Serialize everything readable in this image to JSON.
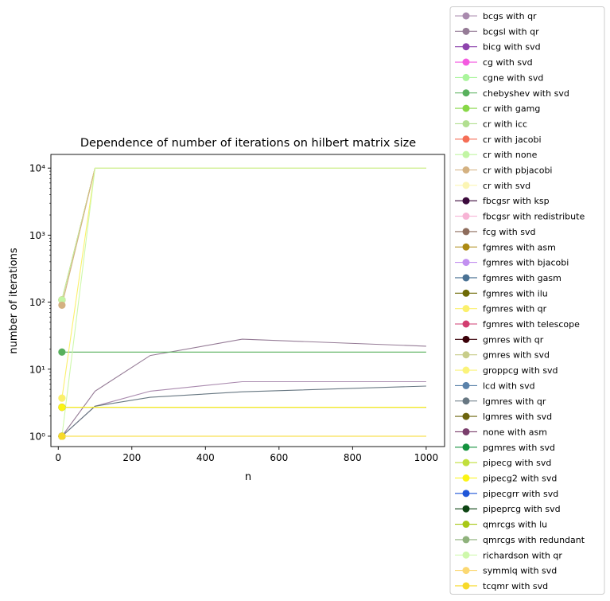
{
  "chart_data": {
    "type": "line",
    "title": "Dependence of number of iterations on hilbert matrix size",
    "xlabel": "n",
    "ylabel": "number of iterations",
    "xscale": "linear",
    "yscale": "log",
    "xlim": [
      -20,
      1050
    ],
    "ylim": [
      0.7,
      16000
    ],
    "xticks": [
      0,
      200,
      400,
      600,
      800,
      1000
    ],
    "xtick_labels": [
      "0",
      "200",
      "400",
      "600",
      "800",
      "1000"
    ],
    "yticks": [
      1,
      10,
      100,
      1000,
      10000
    ],
    "ytick_labels": [
      "10⁰",
      "10¹",
      "10²",
      "10³",
      "10⁴"
    ],
    "grid": false,
    "legend_position": "outside right",
    "x": [
      10,
      100,
      250,
      500,
      1000
    ],
    "series": [
      {
        "name": "bcgs with qr",
        "color": "#a98aae",
        "values": [
          1,
          2.8,
          4.7,
          6.5,
          6.5
        ]
      },
      {
        "name": "bcgsl with qr",
        "color": "#957b96",
        "values": [
          1,
          4.7,
          16,
          28,
          22
        ]
      },
      {
        "name": "bicg with svd",
        "color": "#8e44ad",
        "values": [
          1,
          1,
          1,
          1,
          1
        ]
      },
      {
        "name": "cg with svd",
        "color": "#f45ae0",
        "values": [
          1,
          1,
          1,
          1,
          1
        ]
      },
      {
        "name": "cgne with svd",
        "color": "#aaf59c",
        "values": [
          1,
          1,
          1,
          1,
          1
        ]
      },
      {
        "name": "chebyshev with svd",
        "color": "#58b05c",
        "values": [
          18,
          18,
          18,
          18,
          18
        ]
      },
      {
        "name": "cr with gamg",
        "color": "#88d847",
        "values": [
          108,
          10000,
          10000,
          10000,
          10000
        ]
      },
      {
        "name": "cr with icc",
        "color": "#b2df90",
        "values": [
          108,
          10000,
          10000,
          10000,
          10000
        ]
      },
      {
        "name": "cr with jacobi",
        "color": "#f56e56",
        "values": [
          108,
          10000,
          10000,
          10000,
          10000
        ]
      },
      {
        "name": "cr with none",
        "color": "#c2f5a4",
        "values": [
          108,
          10000,
          10000,
          10000,
          10000
        ]
      },
      {
        "name": "cr with pbjacobi",
        "color": "#d4b181",
        "values": [
          90,
          10000,
          10000,
          10000,
          10000
        ]
      },
      {
        "name": "cr with svd",
        "color": "#fbf5b4",
        "values": [
          1,
          1,
          1,
          1,
          1
        ]
      },
      {
        "name": "fbcgsr with ksp",
        "color": "#3b0a3c",
        "values": [
          1,
          1,
          1,
          1,
          1
        ]
      },
      {
        "name": "fbcgsr with redistribute",
        "color": "#f7b4d5",
        "values": [
          1,
          1,
          1,
          1,
          1
        ]
      },
      {
        "name": "fcg with svd",
        "color": "#8e6c5c",
        "values": [
          1,
          1,
          1,
          1,
          1
        ]
      },
      {
        "name": "fgmres with asm",
        "color": "#ad8a12",
        "values": [
          1,
          1,
          1,
          1,
          1
        ]
      },
      {
        "name": "fgmres with bjacobi",
        "color": "#c290f0",
        "values": [
          1,
          1,
          1,
          1,
          1
        ]
      },
      {
        "name": "fgmres with gasm",
        "color": "#4a7294",
        "values": [
          1,
          1,
          1,
          1,
          1
        ]
      },
      {
        "name": "fgmres with ilu",
        "color": "#6e6a05",
        "values": [
          1,
          1,
          1,
          1,
          1
        ]
      },
      {
        "name": "fgmres with qr",
        "color": "#fbf06c",
        "values": [
          3.7,
          10000,
          10000,
          10000,
          10000
        ]
      },
      {
        "name": "fgmres with telescope",
        "color": "#d23e70",
        "values": [
          1,
          1,
          1,
          1,
          1
        ]
      },
      {
        "name": "gmres with qr",
        "color": "#3a0008",
        "values": [
          2.7,
          2.7,
          2.7,
          2.7,
          2.7
        ]
      },
      {
        "name": "gmres with svd",
        "color": "#c8cd8a",
        "values": [
          1,
          1,
          1,
          1,
          1
        ]
      },
      {
        "name": "groppcg with svd",
        "color": "#fbf37a",
        "values": [
          1,
          1,
          1,
          1,
          1
        ]
      },
      {
        "name": "lcd with svd",
        "color": "#5a82aa",
        "values": [
          1,
          1,
          1,
          1,
          1
        ]
      },
      {
        "name": "lgmres with qr",
        "color": "#677782",
        "values": [
          1,
          2.8,
          3.8,
          4.6,
          5.6
        ]
      },
      {
        "name": "lgmres with svd",
        "color": "#6c640e",
        "values": [
          1,
          1,
          1,
          1,
          1
        ]
      },
      {
        "name": "none with asm",
        "color": "#7a3e6c",
        "values": [
          1,
          1,
          1,
          1,
          1
        ]
      },
      {
        "name": "pgmres with svd",
        "color": "#13923e",
        "values": [
          1,
          1,
          1,
          1,
          1
        ]
      },
      {
        "name": "pipecg with svd",
        "color": "#c1df3c",
        "values": [
          1,
          1,
          1,
          1,
          1
        ]
      },
      {
        "name": "pipecg2 with svd",
        "color": "#fbf414",
        "values": [
          2.7,
          2.7,
          2.7,
          2.7,
          2.7
        ]
      },
      {
        "name": "pipecgrr with svd",
        "color": "#1f56d8",
        "values": [
          1,
          1,
          1,
          1,
          1
        ]
      },
      {
        "name": "pipeprcg with svd",
        "color": "#0d4413",
        "values": [
          1,
          1,
          1,
          1,
          1
        ]
      },
      {
        "name": "qmrcgs with lu",
        "color": "#a8c816",
        "values": [
          1,
          1,
          1,
          1,
          1
        ]
      },
      {
        "name": "qmrcgs with redundant",
        "color": "#8fb27c",
        "values": [
          1,
          1,
          1,
          1,
          1
        ]
      },
      {
        "name": "richardson with qr",
        "color": "#cef8ab",
        "values": [
          1,
          10000,
          10000,
          10000,
          10000
        ]
      },
      {
        "name": "symmlq with svd",
        "color": "#fbd872",
        "values": [
          1,
          1,
          1,
          1,
          1
        ]
      },
      {
        "name": "tcqmr with svd",
        "color": "#f7d92a",
        "values": [
          1,
          1,
          1,
          1,
          1
        ]
      }
    ]
  }
}
